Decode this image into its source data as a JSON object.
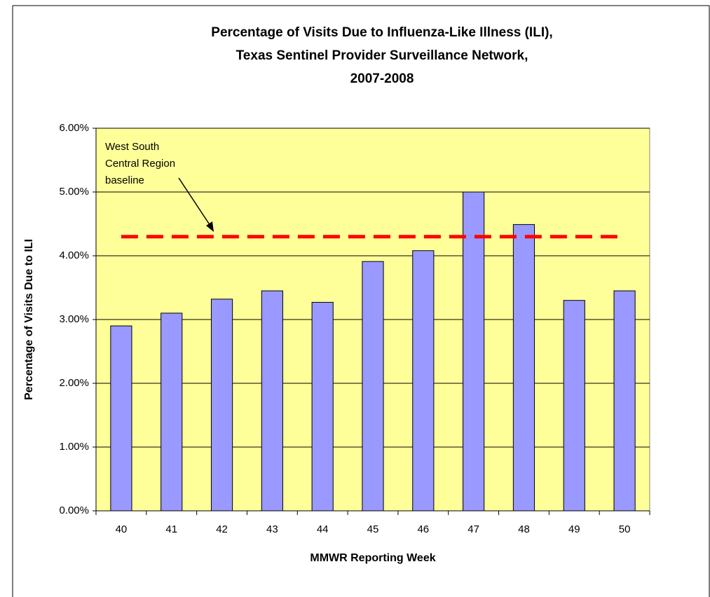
{
  "chart_data": {
    "type": "bar",
    "title": [
      "Percentage of Visits Due to Influenza-Like Illness (ILI),",
      "Texas Sentinel Provider Surveillance Network,",
      "2007-2008"
    ],
    "x_label": "MMWR Reporting Week",
    "y_label": "Percentage of Visits Due to ILI",
    "categories": [
      "40",
      "41",
      "42",
      "43",
      "44",
      "45",
      "46",
      "47",
      "48",
      "49",
      "50"
    ],
    "values": [
      2.9,
      3.1,
      3.32,
      3.45,
      3.27,
      3.91,
      4.08,
      5.0,
      4.49,
      3.3,
      3.45
    ],
    "color": "#9999ff",
    "baseline": {
      "value": 4.3,
      "color": "#ff0000"
    },
    "annotation": [
      "West South",
      "Central Region",
      "baseline"
    ],
    "ylim": [
      0,
      6
    ],
    "yticks": [
      {
        "value": 0,
        "label": "0.00%"
      },
      {
        "value": 1,
        "label": "1.00%"
      },
      {
        "value": 2,
        "label": "2.00%"
      },
      {
        "value": 3,
        "label": "3.00%"
      },
      {
        "value": 4,
        "label": "4.00%"
      },
      {
        "value": 5,
        "label": "5.00%"
      },
      {
        "value": 6,
        "label": "6.00%"
      }
    ],
    "grid": true,
    "background": "#ffff99"
  }
}
